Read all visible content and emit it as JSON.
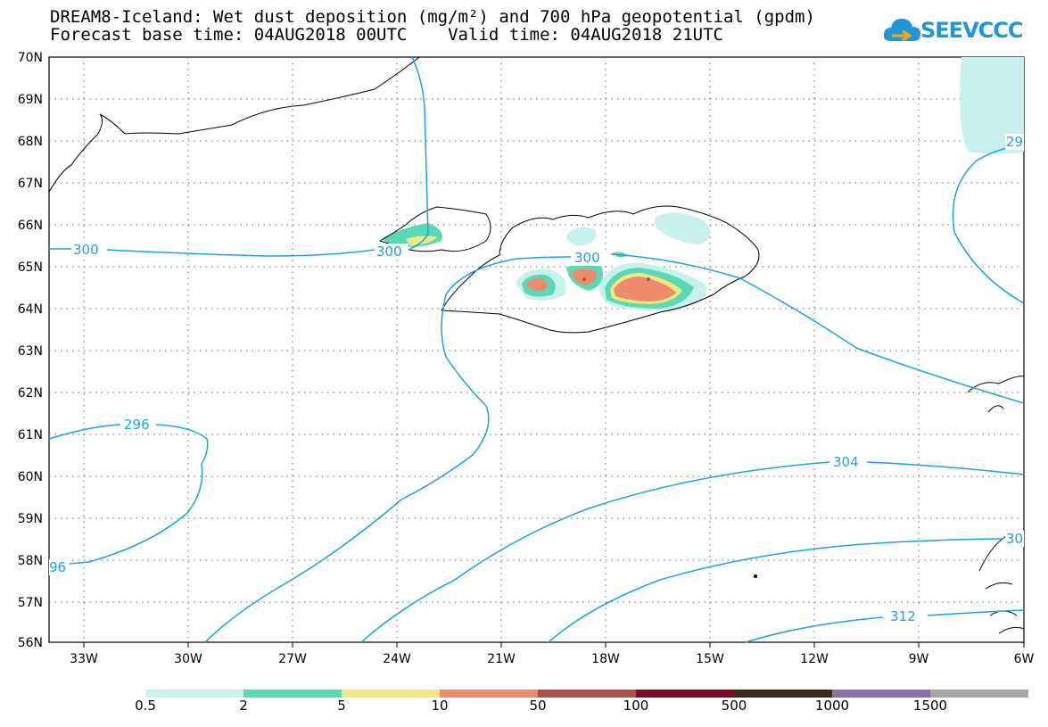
{
  "title": {
    "line1": "DREAM8-Iceland: Wet dust deposition (mg/m²) and 700 hPa geopotential (gpdm)",
    "line2": "Forecast base time: 04AUG2018 00UTC    Valid time: 04AUG2018 21UTC"
  },
  "logo": {
    "text": "SEEVCCC",
    "icon": "cloud-icon",
    "color": "#2196d6"
  },
  "map": {
    "lat_labels": [
      "70N",
      "69N",
      "68N",
      "67N",
      "66N",
      "65N",
      "64N",
      "63N",
      "62N",
      "61N",
      "60N",
      "59N",
      "58N",
      "57N",
      "56N"
    ],
    "lon_labels": [
      "33W",
      "30W",
      "27W",
      "24W",
      "21W",
      "18W",
      "15W",
      "12W",
      "9W",
      "6W"
    ],
    "grid": "dotted",
    "contour_color": "#1ea0e6",
    "contour_labels": [
      "300",
      "300",
      "300",
      "296",
      "96",
      "304",
      "312",
      "29",
      "30"
    ]
  },
  "colorbar": {
    "labels": [
      "0.5",
      "2",
      "5",
      "10",
      "50",
      "100",
      "500",
      "1000",
      "1500"
    ],
    "colors": [
      "#c8f0ec",
      "#5ad9b4",
      "#f3e784",
      "#ec8c6c",
      "#a95148",
      "#7d0a28",
      "#3b2a1a",
      "#8c6ea8",
      "#a8a8a8"
    ]
  }
}
